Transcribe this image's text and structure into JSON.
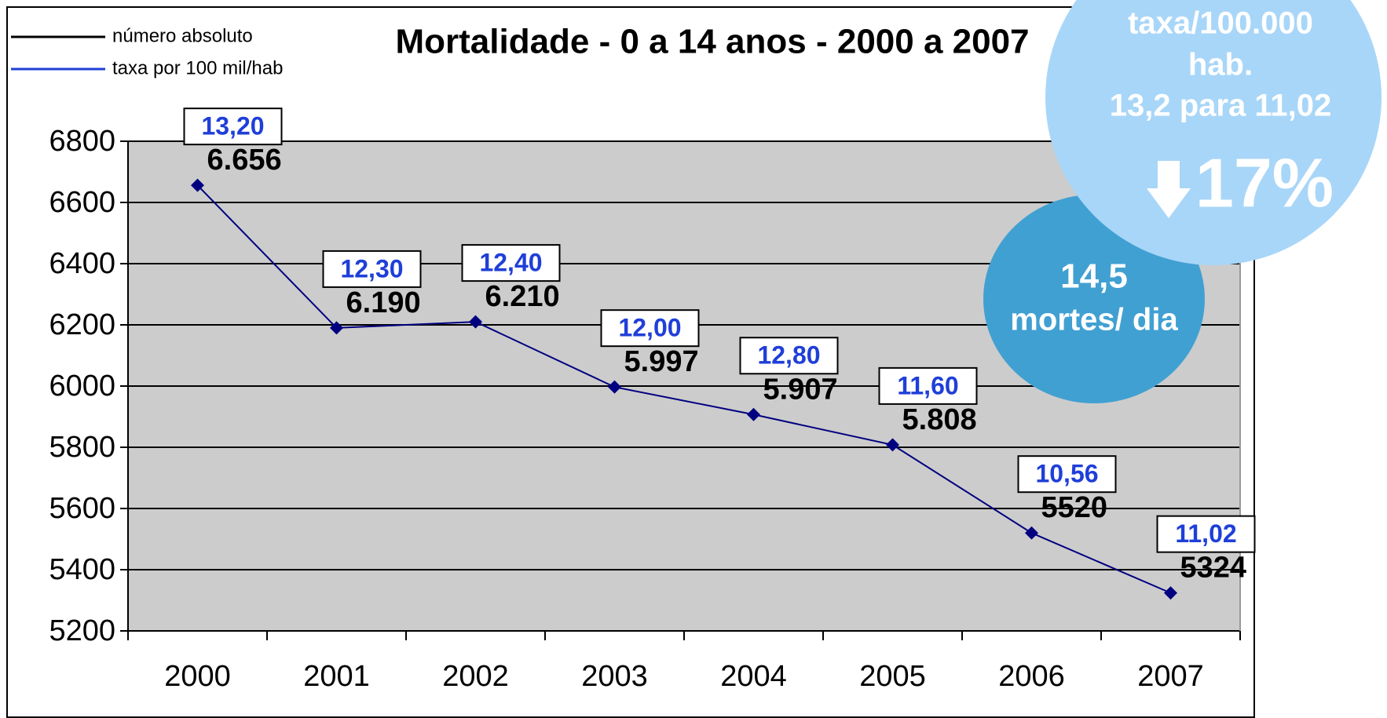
{
  "chart_data": {
    "type": "line",
    "title": "Mortalidade - 0 a 14 anos - 2000 a 2007",
    "categories": [
      "2000",
      "2001",
      "2002",
      "2003",
      "2004",
      "2005",
      "2006",
      "2007"
    ],
    "series": [
      {
        "name": "número absoluto",
        "color": "#000080",
        "values": [
          6656,
          6190,
          6210,
          5997,
          5907,
          5808,
          5520,
          5324
        ],
        "value_labels": [
          "6.656",
          "6.190",
          "6.210",
          "5.997",
          "5.907",
          "5.808",
          "5520",
          "5324"
        ]
      },
      {
        "name": "taxa por 100 mil/hab",
        "color": "#1f3fd8",
        "values": [
          13.2,
          12.3,
          12.4,
          12.0,
          12.8,
          11.6,
          10.56,
          11.02
        ],
        "value_labels": [
          "13,20",
          "12,30",
          "12,40",
          "12,00",
          "12,80",
          "11,60",
          "10,56",
          "11,02"
        ]
      }
    ],
    "ylim": [
      5200,
      6800
    ],
    "yticks": [
      5200,
      5400,
      5600,
      5800,
      6000,
      6200,
      6400,
      6600,
      6800
    ],
    "grid": true,
    "annotations": [
      "taxa/100.000",
      "hab.",
      "13,2 para 11,02",
      "17%",
      "14,5",
      "mortes/ dia"
    ]
  }
}
